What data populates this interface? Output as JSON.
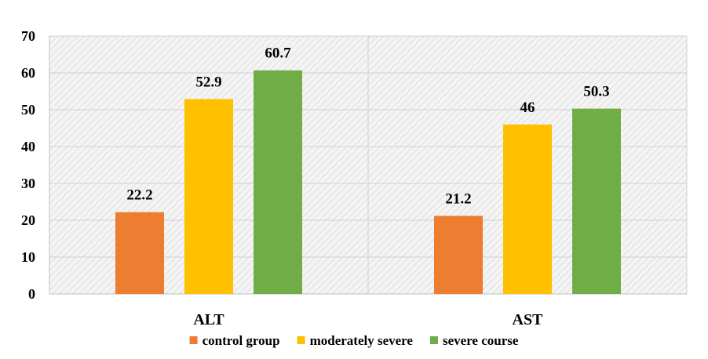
{
  "chart_data": {
    "type": "bar",
    "title": "",
    "xlabel": "",
    "ylabel": "",
    "categories": [
      "ALT",
      "AST"
    ],
    "series": [
      {
        "name": "control group",
        "values": [
          22.2,
          21.2
        ],
        "color": "#ED7D31"
      },
      {
        "name": "moderately severe",
        "values": [
          52.9,
          46
        ],
        "color": "#FFC000"
      },
      {
        "name": "severe course",
        "values": [
          60.7,
          50.3
        ],
        "color": "#70AD47"
      }
    ],
    "data_labels": [
      [
        "22.2",
        "21.2"
      ],
      [
        "52.9",
        "46"
      ],
      [
        "60.7",
        "50.3"
      ]
    ],
    "ylim": [
      0,
      70
    ],
    "yticks": [
      0,
      10,
      20,
      30,
      40,
      50,
      60,
      70
    ],
    "grid": true,
    "legend_position": "bottom",
    "plot_background": "hatched-light-gray"
  }
}
